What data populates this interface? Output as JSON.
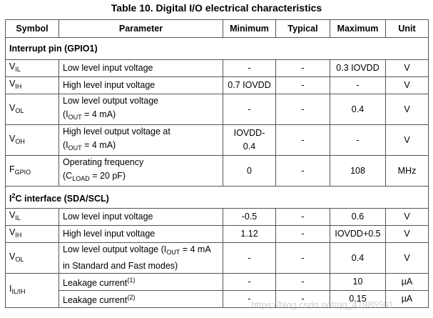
{
  "title": "Table 10. Digital I/O electrical characteristics",
  "table": {
    "header": [
      "Symbol",
      "Parameter",
      "Minimum",
      "Typical",
      "Maximum",
      "Unit"
    ],
    "sections": [
      {
        "title": [
          "Interrupt pin (GPIO1)"
        ],
        "rows": [
          [
            [
              [
                "V",
                {
                  "sub": "IL"
                }
              ]
            ],
            "Low level input voltage",
            "-",
            "-",
            "0.3 IOVDD",
            "V"
          ],
          [
            [
              [
                "V",
                {
                  "sub": "IH"
                }
              ]
            ],
            "High level input voltage",
            "0.7 IOVDD",
            "-",
            "-",
            "V"
          ],
          [
            [
              [
                "V",
                {
                  "sub": "OL"
                }
              ]
            ],
            [
              [
                "Low level output voltage"
              ],
              [
                "(I",
                {
                  "sub": "OUT"
                },
                " = 4 mA)"
              ]
            ],
            "-",
            "-",
            "0.4",
            "V"
          ],
          [
            [
              [
                "V",
                {
                  "sub": "OH"
                }
              ]
            ],
            [
              [
                "High level output voltage at"
              ],
              [
                "(I",
                {
                  "sub": "OUT"
                },
                " = 4 mA)"
              ]
            ],
            [
              [
                "IOVDD-"
              ],
              [
                "0.4"
              ]
            ],
            "-",
            "-",
            "V"
          ],
          [
            [
              [
                "F",
                {
                  "sub": "GPIO"
                }
              ]
            ],
            [
              [
                "Operating frequency"
              ],
              [
                "(C",
                {
                  "sub": "LOAD"
                },
                " = 20 pF)"
              ]
            ],
            "0",
            "-",
            "108",
            "MHz"
          ]
        ]
      },
      {
        "title": [
          "I",
          {
            "sup": "2"
          },
          "C interface (SDA/SCL)"
        ],
        "rows": [
          [
            [
              [
                "V",
                {
                  "sub": "IL"
                }
              ]
            ],
            "Low level input voltage",
            "-0.5",
            "-",
            "0.6",
            "V"
          ],
          [
            [
              [
                "V",
                {
                  "sub": "IH"
                }
              ]
            ],
            "High level input voltage",
            "1.12",
            "-",
            "IOVDD+0.5",
            "V"
          ],
          [
            [
              [
                "V",
                {
                  "sub": "OL"
                }
              ]
            ],
            [
              [
                "Low level output voltage (I",
                {
                  "sub": "OUT"
                },
                " = 4 mA"
              ],
              [
                "in Standard and Fast modes)"
              ]
            ],
            "-",
            "-",
            "0.4",
            "V"
          ],
          [
            [
              [
                "I",
                {
                  "sub": "IL/IH"
                }
              ]
            ],
            [
              [
                "Leakage current",
                {
                  "sup": "(1)"
                }
              ]
            ],
            "-",
            "-",
            "10",
            "µA"
          ],
          [
            null,
            [
              [
                "Leakage current",
                {
                  "sup": "(2)"
                }
              ]
            ],
            "-",
            "-",
            "0.15",
            "µA"
          ]
        ]
      }
    ]
  },
  "watermark": "https://blog.csdn.net/qq_41985591"
}
